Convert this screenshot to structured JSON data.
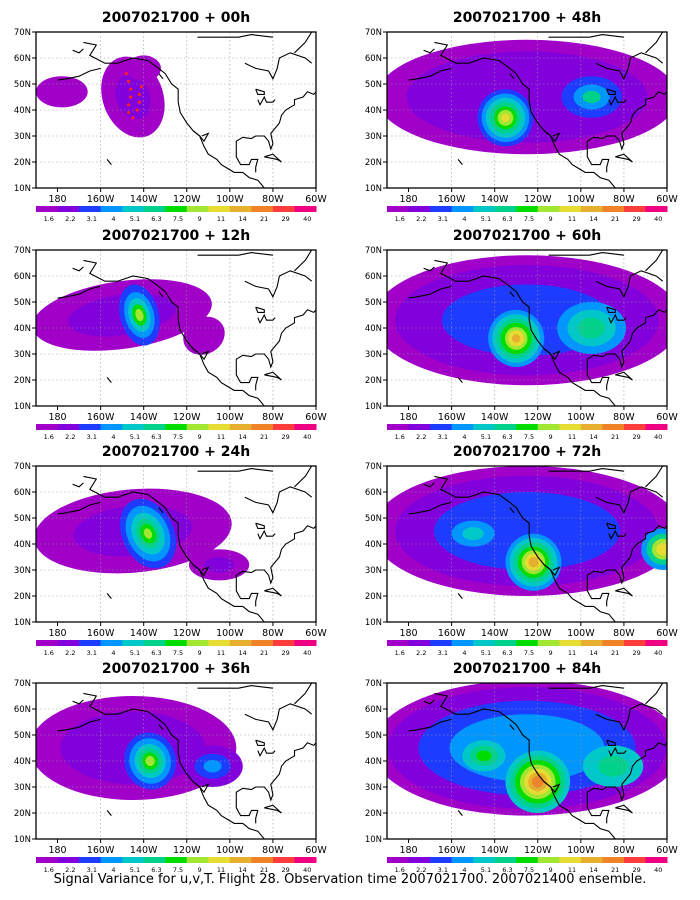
{
  "colorbar": {
    "labels": [
      "1.6",
      "2.2",
      "3.1",
      "4",
      "5.1",
      "6.3",
      "7.5",
      "9",
      "11",
      "14",
      "21",
      "29",
      "40"
    ],
    "colors": [
      "#a000c8",
      "#8200dc",
      "#1e3cff",
      "#0096ff",
      "#00c8c8",
      "#00d28c",
      "#00dc00",
      "#a0e632",
      "#e6dc32",
      "#e6af2d",
      "#f08228",
      "#fa3c3c",
      "#f00082"
    ]
  },
  "axes": {
    "x_ticks": [
      "180",
      "160W",
      "140W",
      "120W",
      "100W",
      "80W",
      "60W"
    ],
    "y_ticks": [
      "10N",
      "20N",
      "30N",
      "40N",
      "50N",
      "60N",
      "70N"
    ],
    "lon_range": [
      -190,
      -60
    ],
    "lat_range": [
      10,
      70
    ]
  },
  "panels": [
    {
      "title": "2007021700 + 00h",
      "lead_h": 0,
      "flight_track": true
    },
    {
      "title": "2007021700 + 12h",
      "lead_h": 12
    },
    {
      "title": "2007021700 + 24h",
      "lead_h": 24
    },
    {
      "title": "2007021700 + 36h",
      "lead_h": 36
    },
    {
      "title": "2007021700 + 48h",
      "lead_h": 48
    },
    {
      "title": "2007021700 + 60h",
      "lead_h": 60
    },
    {
      "title": "2007021700 + 72h",
      "lead_h": 72
    },
    {
      "title": "2007021700 + 84h",
      "lead_h": 84
    }
  ],
  "caption": "Signal Variance for u,v,T. Flight 28. Observation time 2007021700. 2007021400 ensemble."
}
